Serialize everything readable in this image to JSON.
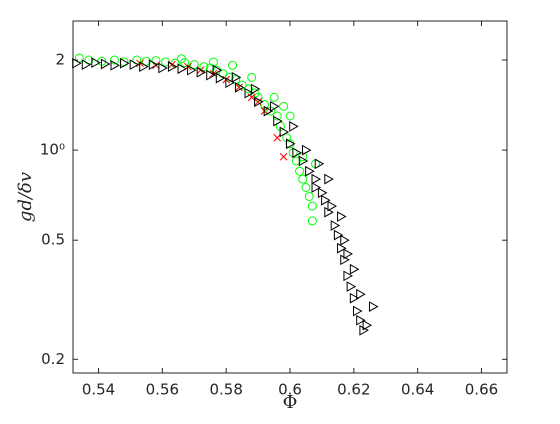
{
  "chart_data": {
    "type": "scatter",
    "xlabel": "Φ",
    "ylabel": "gd/δv",
    "ylog": true,
    "xlim": [
      0.532,
      0.668
    ],
    "xticks": [
      0.54,
      0.56,
      0.58,
      0.6,
      0.62,
      0.64,
      0.66
    ],
    "ylim": [
      0.18,
      2.7
    ],
    "yticks": [
      0.2,
      0.5,
      {
        "value": 1,
        "label": "10⁰"
      },
      2
    ],
    "series": [
      {
        "color": "#00ff00",
        "marker": "circle",
        "x": [
          0.537,
          0.541,
          0.545,
          0.548,
          0.552,
          0.555,
          0.558,
          0.561,
          0.564,
          0.567,
          0.57,
          0.573,
          0.575,
          0.577,
          0.579,
          0.581,
          0.583,
          0.585,
          0.587,
          0.589,
          0.59,
          0.592,
          0.594,
          0.596,
          0.597,
          0.599,
          0.6,
          0.601,
          0.602,
          0.603,
          0.604,
          0.605,
          0.606,
          0.607,
          0.607,
          0.604,
          0.608,
          0.598,
          0.6,
          0.595,
          0.588,
          0.582,
          0.576,
          0.566,
          0.534
        ],
        "values": [
          2.0,
          1.98,
          2.0,
          1.97,
          2.0,
          1.98,
          1.99,
          1.97,
          1.95,
          1.96,
          1.93,
          1.9,
          1.88,
          1.85,
          1.8,
          1.75,
          1.72,
          1.65,
          1.6,
          1.55,
          1.5,
          1.42,
          1.35,
          1.3,
          1.2,
          1.1,
          1.05,
          0.98,
          0.92,
          0.85,
          0.8,
          0.75,
          0.7,
          0.65,
          0.58,
          0.95,
          0.9,
          1.4,
          1.3,
          1.5,
          1.75,
          1.92,
          1.97,
          2.02,
          2.03
        ]
      },
      {
        "color": "#ff0000",
        "marker": "x",
        "x": [
          0.553,
          0.558,
          0.563,
          0.568,
          0.572,
          0.576,
          0.58,
          0.584,
          0.588,
          0.592,
          0.596,
          0.598,
          0.59
        ],
        "values": [
          1.95,
          1.92,
          1.93,
          1.9,
          1.85,
          1.8,
          1.72,
          1.62,
          1.5,
          1.35,
          1.1,
          0.95,
          1.45
        ]
      },
      {
        "color": "#000000",
        "marker": "triangle-right",
        "x": [
          0.533,
          0.536,
          0.539,
          0.542,
          0.545,
          0.548,
          0.551,
          0.554,
          0.557,
          0.56,
          0.563,
          0.566,
          0.569,
          0.572,
          0.575,
          0.578,
          0.581,
          0.584,
          0.587,
          0.59,
          0.593,
          0.596,
          0.598,
          0.6,
          0.602,
          0.604,
          0.606,
          0.608,
          0.61,
          0.611,
          0.612,
          0.614,
          0.615,
          0.616,
          0.617,
          0.618,
          0.619,
          0.62,
          0.621,
          0.622,
          0.623,
          0.624,
          0.626,
          0.62,
          0.617,
          0.613,
          0.609,
          0.605,
          0.601,
          0.595,
          0.589,
          0.583,
          0.577,
          0.608,
          0.612,
          0.618,
          0.622,
          0.616
        ],
        "values": [
          1.95,
          1.93,
          1.96,
          1.94,
          1.92,
          1.95,
          1.93,
          1.9,
          1.93,
          1.88,
          1.9,
          1.87,
          1.85,
          1.82,
          1.78,
          1.74,
          1.68,
          1.62,
          1.55,
          1.45,
          1.35,
          1.25,
          1.15,
          1.05,
          0.98,
          0.92,
          0.85,
          0.8,
          0.72,
          0.68,
          0.62,
          0.56,
          0.52,
          0.47,
          0.43,
          0.38,
          0.35,
          0.32,
          0.29,
          0.27,
          0.25,
          0.26,
          0.3,
          0.4,
          0.5,
          0.65,
          0.9,
          1.0,
          1.2,
          1.4,
          1.6,
          1.75,
          1.85,
          0.75,
          0.8,
          0.45,
          0.33,
          0.6
        ]
      }
    ]
  }
}
